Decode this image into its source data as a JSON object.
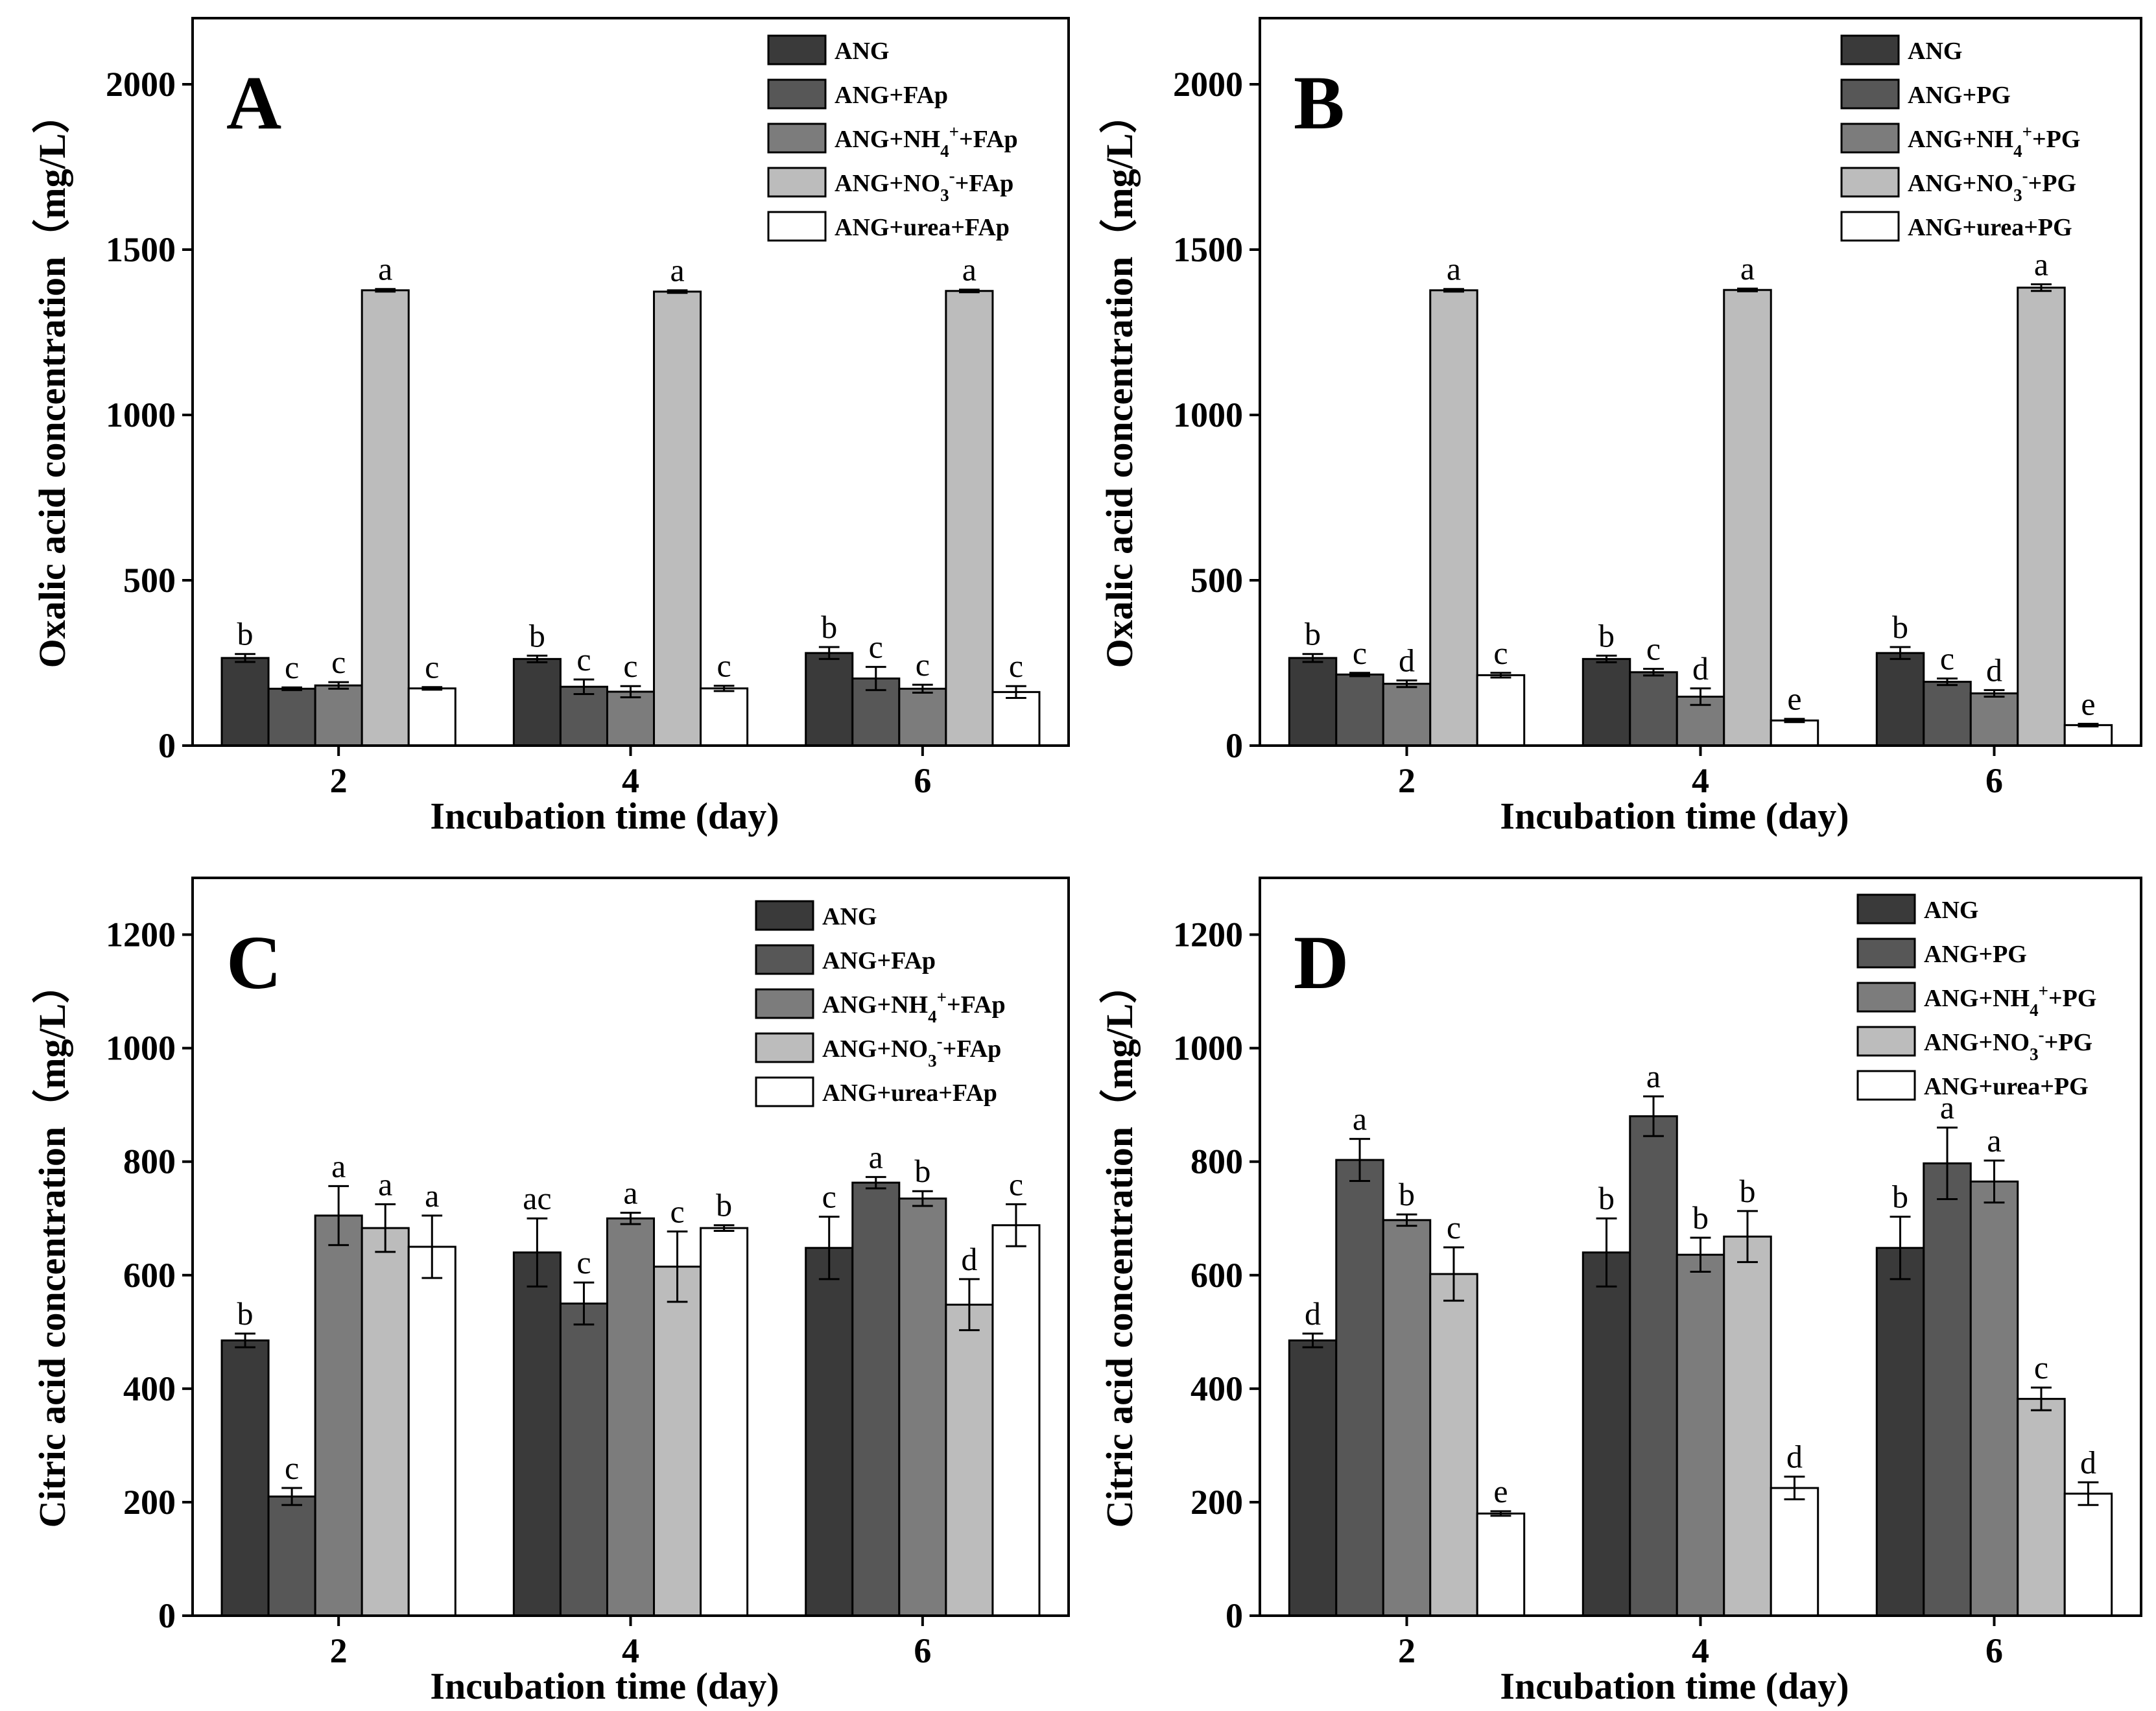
{
  "colors": [
    "#3a3a3a",
    "#575757",
    "#7c7c7c",
    "#bcbcbc",
    "#ffffff"
  ],
  "chart_data": [
    {
      "type": "bar",
      "panel": "A",
      "categories": [
        "2",
        "4",
        "6"
      ],
      "xlabel": "Incubation time (day)",
      "ylabel": "Oxalic acid concentration（mg/L）",
      "ylim": [
        0,
        2200
      ],
      "yticks": [
        "0",
        "500",
        "1000",
        "1500",
        "2000"
      ],
      "series": [
        {
          "name": "ANG",
          "values": [
            265,
            262,
            280
          ],
          "errors": [
            12,
            10,
            18
          ],
          "labels": [
            "b",
            "b",
            "b"
          ]
        },
        {
          "name": "ANG+FAp",
          "values": [
            172,
            178,
            203
          ],
          "errors": [
            4,
            22,
            35
          ],
          "labels": [
            "c",
            "c",
            "c"
          ]
        },
        {
          "name": "ANG+NH4++FAp",
          "values": [
            182,
            163,
            172
          ],
          "errors": [
            10,
            17,
            12
          ],
          "labels": [
            "c",
            "c",
            "c"
          ]
        },
        {
          "name": "ANG+NO3-+FAp",
          "values": [
            1377,
            1373,
            1375
          ],
          "errors": [
            4,
            4,
            4
          ],
          "labels": [
            "a",
            "a",
            "a"
          ]
        },
        {
          "name": "ANG+urea+FAp",
          "values": [
            173,
            173,
            162
          ],
          "errors": [
            4,
            8,
            18
          ],
          "labels": [
            "c",
            "c",
            "c"
          ]
        }
      ],
      "legend_parts": [
        [
          {
            "t": "ANG"
          }
        ],
        [
          {
            "t": "ANG+FAp"
          }
        ],
        [
          {
            "t": "ANG+NH"
          },
          {
            "t": "4",
            "s": "sub"
          },
          {
            "t": "+",
            "s": "sup"
          },
          {
            "t": "+FAp"
          }
        ],
        [
          {
            "t": "ANG+NO"
          },
          {
            "t": "3",
            "s": "sub"
          },
          {
            "t": "-",
            "s": "sup"
          },
          {
            "t": "+FAp"
          }
        ],
        [
          {
            "t": "ANG+urea+FAp"
          }
        ]
      ]
    },
    {
      "type": "bar",
      "panel": "B",
      "categories": [
        "2",
        "4",
        "6"
      ],
      "xlabel": "Incubation time (day)",
      "ylabel": "Oxalic acid concentration（mg/L）",
      "ylim": [
        0,
        2200
      ],
      "yticks": [
        "0",
        "500",
        "1000",
        "1500",
        "2000"
      ],
      "series": [
        {
          "name": "ANG",
          "values": [
            265,
            262,
            280
          ],
          "errors": [
            12,
            10,
            18
          ],
          "labels": [
            "b",
            "b",
            "b"
          ]
        },
        {
          "name": "ANG+PG",
          "values": [
            215,
            222,
            193
          ],
          "errors": [
            5,
            10,
            10
          ],
          "labels": [
            "c",
            "c",
            "c"
          ]
        },
        {
          "name": "ANG+NH4++PG",
          "values": [
            187,
            148,
            158
          ],
          "errors": [
            10,
            25,
            10
          ],
          "labels": [
            "d",
            "d",
            "d"
          ]
        },
        {
          "name": "ANG+NO3-+PG",
          "values": [
            1377,
            1378,
            1385
          ],
          "errors": [
            4,
            4,
            10
          ],
          "labels": [
            "a",
            "a",
            "a"
          ]
        },
        {
          "name": "ANG+urea+PG",
          "values": [
            213,
            76,
            62
          ],
          "errors": [
            7,
            5,
            4
          ],
          "labels": [
            "c",
            "e",
            "e"
          ]
        }
      ],
      "legend_parts": [
        [
          {
            "t": "ANG"
          }
        ],
        [
          {
            "t": "ANG+PG"
          }
        ],
        [
          {
            "t": "ANG+NH"
          },
          {
            "t": "4",
            "s": "sub"
          },
          {
            "t": "+",
            "s": "sup"
          },
          {
            "t": "+PG"
          }
        ],
        [
          {
            "t": "ANG+NO"
          },
          {
            "t": "3",
            "s": "sub"
          },
          {
            "t": "-",
            "s": "sup"
          },
          {
            "t": "+PG"
          }
        ],
        [
          {
            "t": "ANG+urea+PG"
          }
        ]
      ]
    },
    {
      "type": "bar",
      "panel": "C",
      "categories": [
        "2",
        "4",
        "6"
      ],
      "xlabel": "Incubation time (day)",
      "ylabel": "Citric acid concentration（mg/L）",
      "ylim": [
        0,
        1300
      ],
      "yticks": [
        "0",
        "200",
        "400",
        "600",
        "800",
        "1000",
        "1200"
      ],
      "series": [
        {
          "name": "ANG",
          "values": [
            485,
            640,
            648
          ],
          "errors": [
            12,
            60,
            55
          ],
          "labels": [
            "b",
            "ac",
            "c"
          ]
        },
        {
          "name": "ANG+FAp",
          "values": [
            210,
            550,
            763
          ],
          "errors": [
            15,
            37,
            10
          ],
          "labels": [
            "c",
            "c",
            "a"
          ]
        },
        {
          "name": "ANG+NH4++FAp",
          "values": [
            705,
            700,
            735
          ],
          "errors": [
            52,
            10,
            13
          ],
          "labels": [
            "a",
            "a",
            "b"
          ]
        },
        {
          "name": "ANG+NO3-+FAp",
          "values": [
            683,
            615,
            548
          ],
          "errors": [
            42,
            62,
            45
          ],
          "labels": [
            "a",
            "c",
            "d"
          ]
        },
        {
          "name": "ANG+urea+FAp",
          "values": [
            650,
            683,
            688
          ],
          "errors": [
            55,
            5,
            37
          ],
          "labels": [
            "a",
            "b",
            "c"
          ]
        }
      ],
      "legend_parts": [
        [
          {
            "t": "ANG"
          }
        ],
        [
          {
            "t": "ANG+FAp"
          }
        ],
        [
          {
            "t": "ANG+NH"
          },
          {
            "t": "4",
            "s": "sub"
          },
          {
            "t": "+",
            "s": "sup"
          },
          {
            "t": "+FAp"
          }
        ],
        [
          {
            "t": "ANG+NO"
          },
          {
            "t": "3",
            "s": "sub"
          },
          {
            "t": "-",
            "s": "sup"
          },
          {
            "t": "+FAp"
          }
        ],
        [
          {
            "t": "ANG+urea+FAp"
          }
        ]
      ]
    },
    {
      "type": "bar",
      "panel": "D",
      "categories": [
        "2",
        "4",
        "6"
      ],
      "xlabel": "Incubation time (day)",
      "ylabel": "Citric acid concentration（mg/L）",
      "ylim": [
        0,
        1300
      ],
      "yticks": [
        "0",
        "200",
        "400",
        "600",
        "800",
        "1000",
        "1200"
      ],
      "series": [
        {
          "name": "ANG",
          "values": [
            485,
            640,
            648
          ],
          "errors": [
            12,
            60,
            55
          ],
          "labels": [
            "d",
            "b",
            "b"
          ]
        },
        {
          "name": "ANG+PG",
          "values": [
            803,
            880,
            797
          ],
          "errors": [
            37,
            35,
            63
          ],
          "labels": [
            "a",
            "a",
            "a"
          ]
        },
        {
          "name": "ANG+NH4++PG",
          "values": [
            697,
            636,
            765
          ],
          "errors": [
            10,
            30,
            37
          ],
          "labels": [
            "b",
            "b",
            "a"
          ]
        },
        {
          "name": "ANG+NO3-+PG",
          "values": [
            602,
            668,
            382
          ],
          "errors": [
            47,
            45,
            20
          ],
          "labels": [
            "c",
            "b",
            "c"
          ]
        },
        {
          "name": "ANG+urea+PG",
          "values": [
            180,
            225,
            215
          ],
          "errors": [
            4,
            20,
            20
          ],
          "labels": [
            "e",
            "d",
            "d"
          ]
        }
      ],
      "legend_parts": [
        [
          {
            "t": "ANG"
          }
        ],
        [
          {
            "t": "ANG+PG"
          }
        ],
        [
          {
            "t": "ANG+NH"
          },
          {
            "t": "4",
            "s": "sub"
          },
          {
            "t": "+",
            "s": "sup"
          },
          {
            "t": "+PG"
          }
        ],
        [
          {
            "t": "ANG+NO"
          },
          {
            "t": "3",
            "s": "sub"
          },
          {
            "t": "-",
            "s": "sup"
          },
          {
            "t": "+PG"
          }
        ],
        [
          {
            "t": "ANG+urea+PG"
          }
        ]
      ]
    }
  ]
}
